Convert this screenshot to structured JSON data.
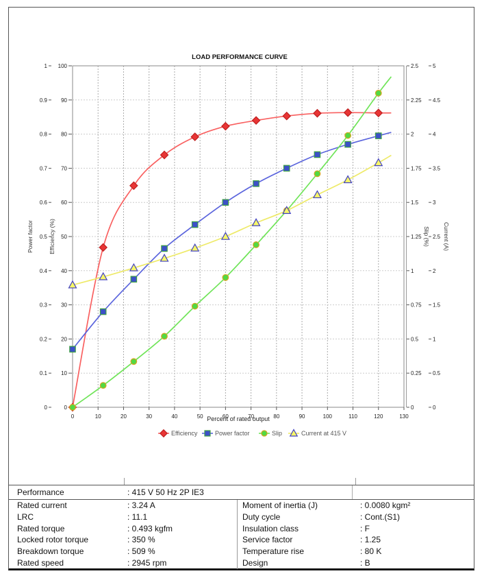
{
  "chart_data": {
    "type": "line",
    "title": "LOAD PERFORMANCE CURVE",
    "xlabel": "Percent of rated output",
    "grid": true,
    "legend_position": "bottom",
    "x_axis": {
      "min": 0,
      "max": 130,
      "tick_step": 10
    },
    "axes": {
      "power_factor": {
        "label": "Power factor",
        "min": 0,
        "max": 1,
        "tick_step": 0.1
      },
      "efficiency": {
        "label": "Efficiency (%)",
        "min": 0,
        "max": 100,
        "tick_step": 10
      },
      "slip": {
        "label": "Slip (%)",
        "min": 0,
        "max": 2.5,
        "tick_step": 0.25
      },
      "current": {
        "label": "Current (A)",
        "min": 0,
        "max": 5,
        "tick_step": 0.5
      }
    },
    "x": [
      0,
      12,
      24,
      36,
      48,
      60,
      72,
      84,
      96,
      108,
      120
    ],
    "extend_x": 125,
    "series": [
      {
        "name": "Efficiency",
        "axis": "efficiency",
        "marker": "diamond",
        "line_color": "#f express66",
        "values": [],
        "placeholder": true
      },
      {
        "name": "Power factor",
        "axis": "power_factor",
        "marker": "square"
      },
      {
        "name": "Slip",
        "axis": "slip",
        "marker": "circle"
      },
      {
        "name": "Current at 415 V",
        "axis": "current",
        "marker": "triangle"
      }
    ],
    "series_data": {
      "Efficiency": {
        "values": [
          0,
          46.8,
          64.9,
          73.9,
          79.2,
          82.3,
          84.0,
          85.3,
          86.1,
          86.3,
          86.2
        ],
        "extend_value": 86.2,
        "line_color": "#f96060",
        "fill": "#e83535",
        "edge": "#c02020"
      },
      "Power factor": {
        "values": [
          0.17,
          0.28,
          0.375,
          0.465,
          0.535,
          0.6,
          0.655,
          0.7,
          0.74,
          0.77,
          0.795
        ],
        "extend_value": 0.805,
        "line_color": "#5a64dd",
        "fill": "#3c50c8",
        "edge": "#3fa045"
      },
      "Slip": {
        "values": [
          0,
          0.16,
          0.335,
          0.52,
          0.74,
          0.95,
          1.19,
          1.44,
          1.71,
          1.99,
          2.3
        ],
        "extend_value": 2.42,
        "line_color": "#6fe458",
        "fill": "#52d943",
        "edge": "#d9a520"
      },
      "Current at 415 V": {
        "values": [
          1.79,
          1.91,
          2.04,
          2.18,
          2.33,
          2.5,
          2.7,
          2.88,
          3.11,
          3.33,
          3.58
        ],
        "extend_value": 3.69,
        "line_color": "#eeea68",
        "fill": "#f7f768",
        "edge": "#4343c2"
      }
    },
    "colors": {
      "grid_vertical": "#aaaaaa",
      "grid_horizontal": "#cccccc",
      "plot_border": "#888888",
      "tick_text": "#222222"
    }
  },
  "table": {
    "performance_label": "Performance",
    "performance_value": ": 415 V 50 Hz 2P IE3",
    "left_rows": [
      {
        "label": "Rated current",
        "value": ": 3.24 A"
      },
      {
        "label": "LRC",
        "value": ": 11.1"
      },
      {
        "label": "Rated torque",
        "value": ": 0.493 kgfm"
      },
      {
        "label": "Locked rotor torque",
        "value": ": 350 %"
      },
      {
        "label": "Breakdown torque",
        "value": ": 509 %"
      },
      {
        "label": "Rated speed",
        "value": ": 2945 rpm"
      }
    ],
    "right_rows": [
      {
        "label": "Moment of inertia (J)",
        "value": ": 0.0080 kgm²"
      },
      {
        "label": "Duty cycle",
        "value": ": Cont.(S1)"
      },
      {
        "label": "Insulation class",
        "value": ": F"
      },
      {
        "label": "Service factor",
        "value": ": 1.25"
      },
      {
        "label": "Temperature rise",
        "value": ": 80 K"
      },
      {
        "label": "Design",
        "value": ": B"
      }
    ]
  }
}
